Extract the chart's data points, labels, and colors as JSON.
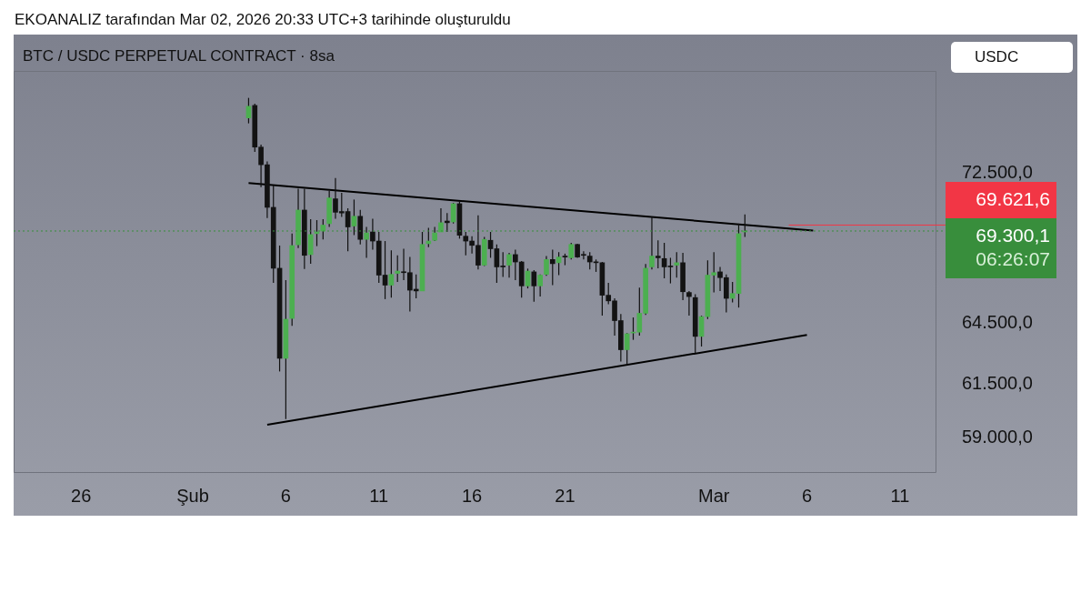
{
  "chart_data": {
    "type": "candlestick",
    "title": "EKOANALIZ tarafından Mar 02, 2026 20:33 UTC+3 tarihinde oluşturuldu",
    "subtitle": "BTC / USDC PERPETUAL CONTRACT · 8sa",
    "annotations": [
      "USDC"
    ],
    "series": [
      {
        "type": "candlestick",
        "x": [
          "2026-02-04T00:00",
          "2026-02-04T08:00",
          "2026-02-04T16:00",
          "2026-02-05T00:00",
          "2026-02-05T08:00",
          "2026-02-05T16:00",
          "2026-02-06T00:00",
          "2026-02-06T08:00",
          "2026-02-06T16:00",
          "2026-02-07T00:00",
          "2026-02-07T08:00",
          "2026-02-07T16:00",
          "2026-02-08T00:00",
          "2026-02-08T08:00",
          "2026-02-08T16:00",
          "2026-02-09T00:00",
          "2026-02-09T08:00",
          "2026-02-09T16:00",
          "2026-02-10T00:00",
          "2026-02-10T08:00",
          "2026-02-10T16:00",
          "2026-02-11T00:00",
          "2026-02-11T08:00",
          "2026-02-11T16:00",
          "2026-02-12T00:00",
          "2026-02-12T08:00",
          "2026-02-12T16:00",
          "2026-02-13T00:00",
          "2026-02-13T08:00",
          "2026-02-13T16:00",
          "2026-02-14T00:00",
          "2026-02-14T08:00",
          "2026-02-14T16:00",
          "2026-02-15T00:00",
          "2026-02-15T08:00",
          "2026-02-15T16:00",
          "2026-02-16T00:00",
          "2026-02-16T08:00",
          "2026-02-16T16:00",
          "2026-02-17T00:00",
          "2026-02-17T08:00",
          "2026-02-17T16:00",
          "2026-02-18T00:00",
          "2026-02-18T08:00",
          "2026-02-18T16:00",
          "2026-02-19T00:00",
          "2026-02-19T08:00",
          "2026-02-19T16:00",
          "2026-02-20T00:00",
          "2026-02-20T08:00",
          "2026-02-20T16:00",
          "2026-02-21T00:00",
          "2026-02-21T08:00",
          "2026-02-21T16:00",
          "2026-02-22T00:00",
          "2026-02-22T08:00",
          "2026-02-22T16:00",
          "2026-02-23T00:00",
          "2026-02-23T08:00",
          "2026-02-23T16:00",
          "2026-02-24T00:00",
          "2026-02-24T08:00",
          "2026-02-24T16:00",
          "2026-02-25T00:00",
          "2026-02-25T08:00",
          "2026-02-25T16:00",
          "2026-02-26T00:00",
          "2026-02-26T08:00",
          "2026-02-26T16:00",
          "2026-02-27T00:00",
          "2026-02-27T08:00",
          "2026-02-27T16:00",
          "2026-02-28T00:00",
          "2026-02-28T08:00",
          "2026-02-28T16:00",
          "2026-03-01T00:00",
          "2026-03-01T08:00",
          "2026-03-01T16:00",
          "2026-03-02T00:00",
          "2026-03-02T08:00",
          "2026-03-02T16:00"
        ],
        "ohlc": [
          [
            75680,
            76870,
            75360,
            76370
          ],
          [
            76420,
            76520,
            73700,
            73980
          ],
          [
            73980,
            74120,
            71710,
            72970
          ],
          [
            72970,
            73160,
            70000,
            70590
          ],
          [
            70590,
            71800,
            66560,
            67320
          ],
          [
            67320,
            68520,
            62120,
            62760
          ],
          [
            62760,
            66700,
            59860,
            64700
          ],
          [
            64740,
            69160,
            64370,
            68520
          ],
          [
            68560,
            71620,
            68390,
            70440
          ],
          [
            70440,
            71620,
            67280,
            68000
          ],
          [
            68040,
            69940,
            67560,
            69110
          ],
          [
            69160,
            69890,
            68490,
            69250
          ],
          [
            69300,
            69940,
            68850,
            69620
          ],
          [
            69700,
            71490,
            69520,
            71110
          ],
          [
            71060,
            72220,
            69970,
            70320
          ],
          [
            70360,
            71390,
            70060,
            70280
          ],
          [
            70360,
            70540,
            68220,
            69520
          ],
          [
            69570,
            71020,
            69080,
            70100
          ],
          [
            70100,
            70450,
            68580,
            68850
          ],
          [
            68850,
            69520,
            67870,
            69200
          ],
          [
            69250,
            69970,
            68300,
            68760
          ],
          [
            68760,
            69250,
            66560,
            66960
          ],
          [
            66960,
            68760,
            65720,
            66440
          ],
          [
            66440,
            68260,
            65800,
            67000
          ],
          [
            67050,
            68000,
            66600,
            67170
          ],
          [
            67130,
            68350,
            66700,
            67090
          ],
          [
            67090,
            67910,
            65090,
            66180
          ],
          [
            66230,
            67000,
            65760,
            66140
          ],
          [
            66140,
            69250,
            66140,
            68580
          ],
          [
            68620,
            69470,
            68440,
            68760
          ],
          [
            68800,
            69520,
            68760,
            69200
          ],
          [
            69250,
            70540,
            69250,
            69750
          ],
          [
            69840,
            70270,
            69250,
            69750
          ],
          [
            69790,
            70840,
            69700,
            70790
          ],
          [
            70790,
            70930,
            68890,
            69070
          ],
          [
            69020,
            69250,
            68000,
            68760
          ],
          [
            68760,
            69020,
            68090,
            68530
          ],
          [
            68530,
            70150,
            67260,
            67480
          ],
          [
            67480,
            68980,
            67440,
            68850
          ],
          [
            68800,
            69250,
            67870,
            68350
          ],
          [
            68350,
            68580,
            66560,
            67390
          ],
          [
            67440,
            68170,
            66870,
            67390
          ],
          [
            67480,
            68130,
            66830,
            68040
          ],
          [
            68040,
            68300,
            66700,
            67650
          ],
          [
            67650,
            67700,
            65800,
            66400
          ],
          [
            66400,
            67300,
            66270,
            67170
          ],
          [
            67130,
            67220,
            65590,
            66400
          ],
          [
            66400,
            67000,
            65850,
            66960
          ],
          [
            67000,
            67960,
            66920,
            67780
          ],
          [
            67780,
            68300,
            66440,
            67560
          ],
          [
            67610,
            68170,
            66960,
            67910
          ],
          [
            67960,
            68090,
            67480,
            67910
          ],
          [
            67870,
            68670,
            67780,
            68580
          ],
          [
            68580,
            68620,
            67870,
            67910
          ],
          [
            68040,
            68220,
            67780,
            68000
          ],
          [
            67960,
            68170,
            67260,
            67650
          ],
          [
            67650,
            67780,
            67130,
            67610
          ],
          [
            67610,
            67650,
            64880,
            65920
          ],
          [
            65920,
            66560,
            65460,
            65630
          ],
          [
            65630,
            65760,
            63880,
            64630
          ],
          [
            64630,
            64960,
            62600,
            63180
          ],
          [
            63180,
            64000,
            62440,
            63970
          ],
          [
            64010,
            64790,
            63670,
            64050
          ],
          [
            64050,
            66310,
            63880,
            65000
          ],
          [
            65000,
            67540,
            64920,
            67320
          ],
          [
            67390,
            70060,
            67260,
            67960
          ],
          [
            67960,
            68800,
            67320,
            67870
          ],
          [
            67830,
            68670,
            66790,
            67390
          ],
          [
            67440,
            67870,
            66530,
            67390
          ],
          [
            67480,
            68170,
            66830,
            67610
          ],
          [
            67610,
            68130,
            65670,
            66100
          ],
          [
            66060,
            66140,
            64880,
            65850
          ],
          [
            65800,
            65970,
            63010,
            63840
          ],
          [
            63840,
            64880,
            63340,
            64830
          ],
          [
            64830,
            67740,
            64710,
            66960
          ],
          [
            66960,
            68170,
            66060,
            67090
          ],
          [
            67130,
            67390,
            66140,
            66830
          ],
          [
            66830,
            67000,
            65040,
            65760
          ],
          [
            65760,
            66610,
            65550,
            66010
          ],
          [
            66010,
            69700,
            65290,
            69160
          ],
          [
            69250,
            70200,
            68980,
            69300.1
          ]
        ],
        "colors": [
          "#4caf50",
          "#131313",
          "#131313",
          "#131313",
          "#131313",
          "#131313",
          "#4caf50",
          "#4caf50",
          "#4caf50",
          "#131313",
          "#4caf50",
          "#4caf50",
          "#4caf50",
          "#4caf50",
          "#131313",
          "#131313",
          "#131313",
          "#4caf50",
          "#131313",
          "#4caf50",
          "#131313",
          "#131313",
          "#131313",
          "#4caf50",
          "#4caf50",
          "#131313",
          "#131313",
          "#131313",
          "#4caf50",
          "#4caf50",
          "#4caf50",
          "#4caf50",
          "#131313",
          "#4caf50",
          "#131313",
          "#131313",
          "#131313",
          "#131313",
          "#4caf50",
          "#131313",
          "#131313",
          "#131313",
          "#4caf50",
          "#131313",
          "#131313",
          "#4caf50",
          "#131313",
          "#4caf50",
          "#4caf50",
          "#131313",
          "#4caf50",
          "#131313",
          "#4caf50",
          "#131313",
          "#131313",
          "#131313",
          "#131313",
          "#131313",
          "#131313",
          "#131313",
          "#131313",
          "#4caf50",
          "#4caf50",
          "#4caf50",
          "#4caf50",
          "#4caf50",
          "#131313",
          "#131313",
          "#131313",
          "#4caf50",
          "#131313",
          "#131313",
          "#131313",
          "#4caf50",
          "#4caf50",
          "#4caf50",
          "#131313",
          "#131313",
          "#4caf50",
          "#4caf50",
          "#4caf50"
        ]
      },
      {
        "type": "line",
        "x": [
          "2026-02-04T00:00",
          "2026-03-06T08:00"
        ],
        "values": [
          71940,
          69320
        ],
        "color": "#000000"
      },
      {
        "type": "line",
        "x": [
          "2026-02-05T00:00",
          "2026-03-06T00:00"
        ],
        "values": [
          59600,
          63910
        ],
        "color": "#000000"
      }
    ],
    "xlim": [
      "2026-01-22T09:00",
      "2026-03-12T23:00"
    ],
    "xticks": [
      {
        "value": "2026-01-26",
        "label": "26"
      },
      {
        "value": "2026-02-01",
        "label": "Şub"
      },
      {
        "value": "2026-02-06",
        "label": "6"
      },
      {
        "value": "2026-02-11",
        "label": "11"
      },
      {
        "value": "2026-02-16",
        "label": "16"
      },
      {
        "value": "2026-02-21",
        "label": "21"
      },
      {
        "value": "2026-03-01",
        "label": "Mar"
      },
      {
        "value": "2026-03-06",
        "label": "6"
      },
      {
        "value": "2026-03-11",
        "label": "11"
      }
    ],
    "ylim": [
      57400,
      78500
    ],
    "yticks": [
      {
        "value": 59000,
        "label": "59.000,0"
      },
      {
        "value": 61500,
        "label": "61.500,0"
      },
      {
        "value": 64500,
        "label": "64.500,0"
      },
      {
        "value": 72500,
        "label": "72.500,0"
      }
    ],
    "log": true,
    "ref_lines": [
      {
        "axis": "y",
        "value": 69300.1,
        "label": "69.300,1\n06:26:07",
        "color": "#388e3c",
        "line_style": "dotted"
      },
      {
        "axis": "y",
        "value": 69621.6,
        "label": "69.621,6",
        "color": "#f23645",
        "line_style": "solid"
      }
    ],
    "legend": false,
    "grid": false
  }
}
